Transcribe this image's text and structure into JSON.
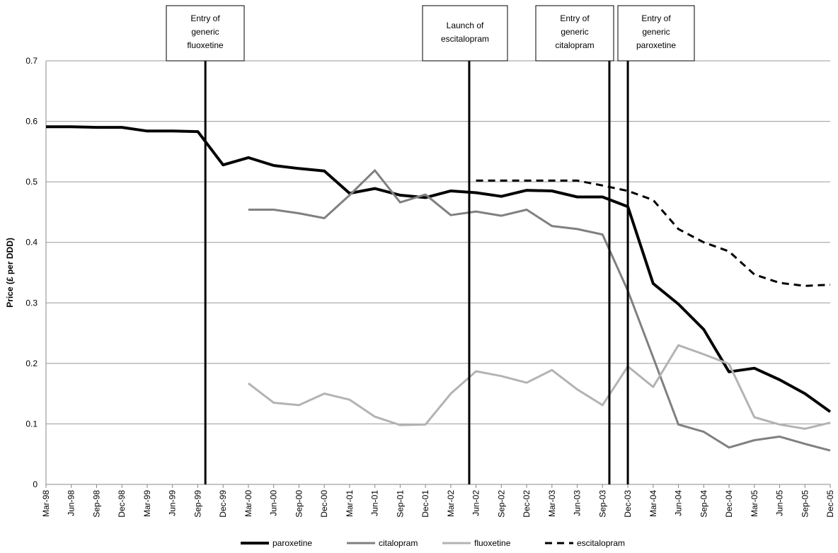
{
  "chart_data": {
    "type": "line",
    "y_label": "Price (£ per DDD)",
    "categories": [
      "Mar-98",
      "Jun-98",
      "Sep-98",
      "Dec-98",
      "Mar-99",
      "Jun-99",
      "Sep-99",
      "Dec-99",
      "Mar-00",
      "Jun-00",
      "Sep-00",
      "Dec-00",
      "Mar-01",
      "Jun-01",
      "Sep-01",
      "Dec-01",
      "Mar-02",
      "Jun-02",
      "Sep-02",
      "Dec-02",
      "Mar-03",
      "Jun-03",
      "Sep-03",
      "Dec-03",
      "Mar-04",
      "Jun-04",
      "Sep-04",
      "Dec-04",
      "Mar-05",
      "Jun-05",
      "Sep-05",
      "Dec-05"
    ],
    "ylim": [
      0,
      0.7
    ],
    "yticks": [
      0,
      0.1,
      0.2,
      0.3,
      0.4,
      0.5,
      0.6,
      0.7
    ],
    "grid": true,
    "legend": "bottom",
    "series": [
      {
        "name": "paroxetine",
        "color": "#000000",
        "width": 4,
        "dashed": false,
        "values": [
          0.591,
          0.591,
          0.59,
          0.59,
          0.584,
          0.584,
          0.583,
          0.528,
          0.54,
          0.527,
          0.522,
          0.518,
          0.481,
          0.489,
          0.478,
          0.474,
          0.485,
          0.482,
          0.476,
          0.486,
          0.485,
          0.475,
          0.475,
          0.459,
          0.332,
          0.298,
          0.256,
          0.186,
          0.192,
          0.173,
          0.15,
          0.12
        ]
      },
      {
        "name": "citalopram",
        "color": "#808080",
        "width": 3,
        "dashed": false,
        "values": [
          null,
          null,
          null,
          null,
          null,
          null,
          null,
          null,
          0.454,
          0.454,
          0.448,
          0.44,
          0.478,
          0.519,
          0.466,
          0.479,
          0.445,
          0.451,
          0.444,
          0.454,
          0.427,
          0.422,
          0.413,
          0.32,
          0.21,
          0.099,
          0.087,
          0.061,
          0.073,
          0.079,
          0.067,
          0.056
        ]
      },
      {
        "name": "fluoxetine",
        "color": "#b3b3b3",
        "width": 3,
        "dashed": false,
        "values": [
          null,
          null,
          null,
          null,
          null,
          null,
          null,
          null,
          0.167,
          0.135,
          0.131,
          0.15,
          0.14,
          0.112,
          0.098,
          0.099,
          0.15,
          0.187,
          0.179,
          0.168,
          0.189,
          0.157,
          0.131,
          0.195,
          0.161,
          0.23,
          0.215,
          0.199,
          0.111,
          0.099,
          0.092,
          0.102
        ]
      },
      {
        "name": "escitalopram",
        "color": "#000000",
        "width": 3,
        "dashed": true,
        "values": [
          null,
          null,
          null,
          null,
          null,
          null,
          null,
          null,
          null,
          null,
          null,
          null,
          null,
          null,
          null,
          null,
          null,
          0.502,
          0.502,
          0.502,
          0.502,
          0.502,
          0.494,
          0.485,
          0.47,
          0.422,
          0.4,
          0.385,
          0.347,
          0.333,
          0.328,
          0.33
        ]
      }
    ],
    "annotations": [
      {
        "lines": [
          "Entry of",
          "generic",
          "fluoxetine"
        ],
        "position": 6.3
      },
      {
        "lines": [
          "Launch of",
          "escitalopram"
        ],
        "position": 16.73
      },
      {
        "lines": [
          "Entry of",
          "generic",
          "citalopram"
        ],
        "position": 22.27
      },
      {
        "lines": [
          "Entry of",
          "generic",
          "paroxetine"
        ],
        "position": 23.0
      }
    ]
  }
}
